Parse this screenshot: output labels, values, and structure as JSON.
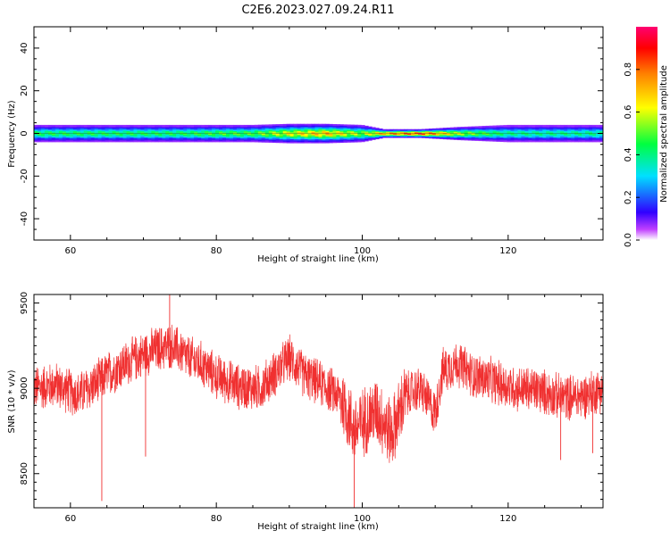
{
  "title": "C2E6.2023.027.09.24.R11",
  "chart_data": [
    {
      "type": "heatmap",
      "xlabel": "Height of straight line (km)",
      "ylabel": "Frequency (Hz)",
      "xlim": [
        55,
        133
      ],
      "ylim": [
        -50,
        50
      ],
      "xticks": [
        60,
        80,
        100,
        120
      ],
      "yticks": [
        -40,
        -20,
        0,
        20,
        40
      ],
      "colorbar": {
        "label": "Normalized spectral amplitude",
        "range": [
          0,
          1
        ],
        "ticks": [
          0.0,
          0.2,
          0.4,
          0.6,
          0.8
        ]
      },
      "band": [
        {
          "x": 55,
          "half_width_hz": 4,
          "peak": 0.45
        },
        {
          "x": 65,
          "half_width_hz": 4,
          "peak": 0.45
        },
        {
          "x": 75,
          "half_width_hz": 4,
          "peak": 0.45
        },
        {
          "x": 81,
          "half_width_hz": 4,
          "peak": 0.5
        },
        {
          "x": 85,
          "half_width_hz": 4,
          "peak": 0.5
        },
        {
          "x": 90,
          "half_width_hz": 4.5,
          "peak": 0.65
        },
        {
          "x": 95,
          "half_width_hz": 4.5,
          "peak": 0.75
        },
        {
          "x": 100,
          "half_width_hz": 4,
          "peak": 0.55
        },
        {
          "x": 103,
          "half_width_hz": 2,
          "peak": 0.8
        },
        {
          "x": 108,
          "half_width_hz": 2,
          "peak": 0.95
        },
        {
          "x": 113,
          "half_width_hz": 3,
          "peak": 0.6
        },
        {
          "x": 120,
          "half_width_hz": 4,
          "peak": 0.4
        },
        {
          "x": 133,
          "half_width_hz": 4,
          "peak": 0.4
        }
      ]
    },
    {
      "type": "line",
      "xlabel": "Height of straight line (km)",
      "ylabel": "SNR (10 * v/v)",
      "xlim": [
        55,
        133
      ],
      "ylim": [
        8300,
        9550
      ],
      "xticks": [
        60,
        80,
        100,
        120
      ],
      "yticks": [
        8500,
        9000,
        9500
      ],
      "series": [
        {
          "color": "#f03030",
          "x": [
            55,
            58,
            61,
            64,
            65,
            67,
            70,
            72,
            74,
            76,
            78,
            80,
            83,
            86,
            89,
            90,
            92,
            95,
            97,
            99,
            100,
            102,
            104,
            106,
            108,
            110,
            111,
            113,
            115,
            118,
            121,
            124,
            127,
            130,
            133
          ],
          "y": [
            9000,
            9020,
            8960,
            9040,
            9080,
            9130,
            9200,
            9230,
            9250,
            9180,
            9140,
            9070,
            9010,
            9000,
            9130,
            9180,
            9080,
            9010,
            8950,
            8750,
            8800,
            8870,
            8730,
            8960,
            9000,
            8850,
            9100,
            9150,
            9080,
            9040,
            9000,
            8990,
            8950,
            8950,
            9000
          ]
        }
      ],
      "spikes": [
        {
          "x": 64.3,
          "y": 8340
        },
        {
          "x": 70.3,
          "y": 8600
        },
        {
          "x": 73.6,
          "y": 9590
        },
        {
          "x": 98.9,
          "y": 8300
        },
        {
          "x": 127.2,
          "y": 8580
        },
        {
          "x": 131.6,
          "y": 8620
        }
      ]
    }
  ]
}
